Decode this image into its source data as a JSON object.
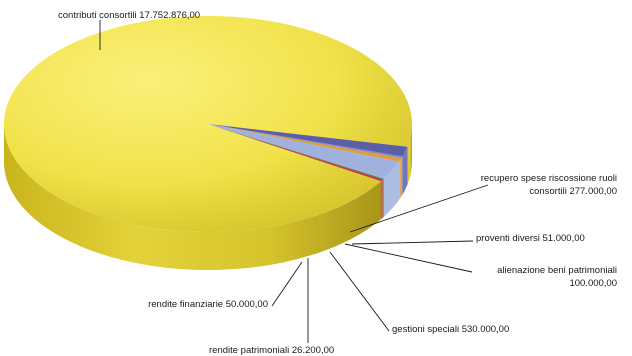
{
  "chart_data": {
    "type": "pie",
    "style": "3d-tilted",
    "slices": [
      {
        "name": "contributi consortili",
        "value": 17752876,
        "value_label": "17.752.876,00",
        "color": "#e8d83a"
      },
      {
        "name": "recupero spese riscossione ruoli consortili",
        "value": 277000,
        "value_label": "277.000,00",
        "color": "#5b5fa8"
      },
      {
        "name": "proventi diversi",
        "value": 51000,
        "value_label": "51.000,00",
        "color": "#7d8fc4"
      },
      {
        "name": "alienazione beni patrimoniali",
        "value": 100000,
        "value_label": "100.000,00",
        "color": "#e59a3a"
      },
      {
        "name": "gestioni speciali",
        "value": 530000,
        "value_label": "530.000,00",
        "color": "#9fb1dc"
      },
      {
        "name": "rendite patrimoniali",
        "value": 26200,
        "value_label": "26.200,00",
        "color": "#3f7a3f"
      },
      {
        "name": "rendite finanziarie",
        "value": 50000,
        "value_label": "50.000,00",
        "color": "#c43a3a"
      }
    ],
    "labels": [
      {
        "lines": [
          "contributi consortili    17.752.876,00"
        ]
      },
      {
        "lines": [
          "recupero spese riscossione ruoli",
          "consortili   277.000,00"
        ]
      },
      {
        "lines": [
          "proventi diversi   51.000,00"
        ]
      },
      {
        "lines": [
          "alienazione beni patrimoniali",
          "100.000,00"
        ]
      },
      {
        "lines": [
          "gestioni speciali   530.000,00"
        ]
      },
      {
        "lines": [
          "rendite patrimoniali   26.200,00"
        ]
      },
      {
        "lines": [
          "rendite finanziarie   50.000,00"
        ]
      }
    ],
    "legend": "none"
  }
}
